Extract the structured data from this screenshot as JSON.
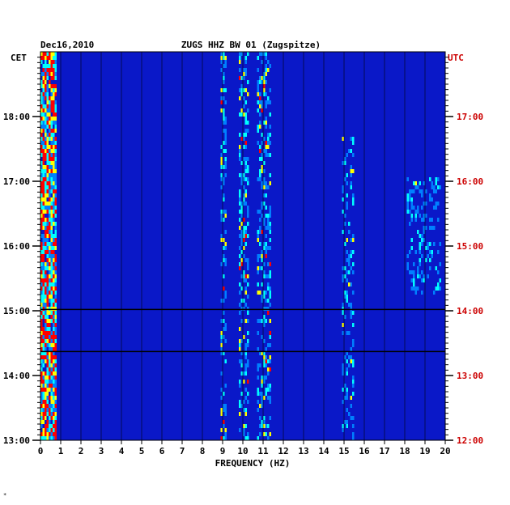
{
  "chart_data": {
    "type": "heatmap",
    "title": "ZUGS HHZ BW 01 (Zugspitze)",
    "date": "Dec16,2010",
    "left_timezone": "CET",
    "right_timezone": "UTC",
    "xlabel": "FREQUENCY (HZ)",
    "xlim": [
      0,
      20
    ],
    "x_ticks": [
      "0",
      "1",
      "2",
      "3",
      "4",
      "5",
      "6",
      "7",
      "8",
      "9",
      "10",
      "11",
      "12",
      "13",
      "14",
      "15",
      "16",
      "17",
      "18",
      "19",
      "20"
    ],
    "time_range_cet": [
      "13:00",
      "18:35"
    ],
    "left_ticks": [
      {
        "label": "13:00",
        "hour": 13
      },
      {
        "label": "14:00",
        "hour": 14
      },
      {
        "label": "15:00",
        "hour": 15
      },
      {
        "label": "16:00",
        "hour": 16
      },
      {
        "label": "17:00",
        "hour": 17
      },
      {
        "label": "18:00",
        "hour": 18
      }
    ],
    "right_ticks": [
      {
        "label": "12:00",
        "hour": 13
      },
      {
        "label": "13:00",
        "hour": 14
      },
      {
        "label": "14:00",
        "hour": 15
      },
      {
        "label": "15:00",
        "hour": 16
      },
      {
        "label": "16:00",
        "hour": 17
      },
      {
        "label": "17:00",
        "hour": 18
      }
    ],
    "colorscale": [
      "#00008b",
      "#0000ff",
      "#00ffff",
      "#ffff00",
      "#ff0000"
    ],
    "grid": true
  },
  "footnote": "*"
}
